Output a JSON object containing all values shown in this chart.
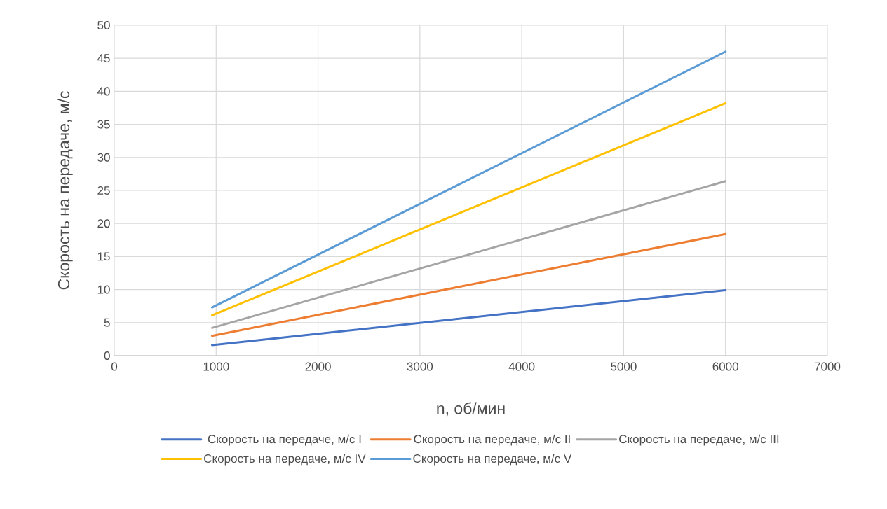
{
  "chart_data": {
    "type": "line",
    "xlabel": "n, об/мин",
    "ylabel": "Скорость на передаче, м/с",
    "xlim": [
      0,
      7000
    ],
    "xticks": [
      0,
      1000,
      2000,
      3000,
      4000,
      5000,
      6000,
      7000
    ],
    "ylim": [
      0,
      50
    ],
    "yticks": [
      0,
      5,
      10,
      15,
      20,
      25,
      30,
      35,
      40,
      45,
      50
    ],
    "grid": true,
    "legend": "bottom",
    "marker": "none",
    "line_style": "solid",
    "x": [
      960,
      6000
    ],
    "series": [
      {
        "name": "Скорость на передаче, м/с I",
        "color": "#4472c4",
        "values": [
          1.6,
          9.9
        ]
      },
      {
        "name": "Скорость на передаче, м/с II",
        "color": "#ed7d31",
        "values": [
          3.0,
          18.4
        ]
      },
      {
        "name": "Скорость на передаче, м/с III",
        "color": "#a5a5a5",
        "values": [
          4.2,
          26.4
        ]
      },
      {
        "name": "Скорость на передаче, м/с IV",
        "color": "#ffc000",
        "values": [
          6.1,
          38.2
        ]
      },
      {
        "name": "Скорость на передаче, м/с V",
        "color": "#5b9bd5",
        "values": [
          7.3,
          46.0
        ]
      }
    ]
  }
}
